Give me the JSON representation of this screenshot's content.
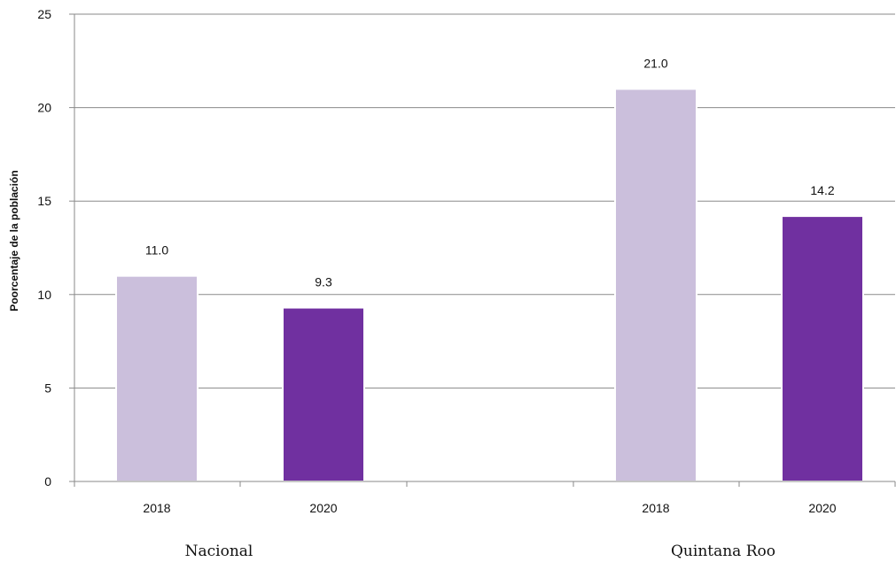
{
  "chart_data": {
    "type": "bar",
    "ylabel": "Poorcentaje de la población",
    "ylim": [
      0,
      25
    ],
    "yticks": [
      0,
      5,
      10,
      15,
      20,
      25
    ],
    "grid": true,
    "groups": [
      {
        "name": "Nacional",
        "bars": [
          {
            "year": "2018",
            "value": 11.0,
            "label": "11.0"
          },
          {
            "year": "2020",
            "value": 9.3,
            "label": "9.3"
          }
        ]
      },
      {
        "name": "Quintana Roo",
        "bars": [
          {
            "year": "2018",
            "value": 21.0,
            "label": "21.0"
          },
          {
            "year": "2020",
            "value": 14.2,
            "label": "14.2"
          }
        ]
      }
    ],
    "colors": {
      "2018": "#cbbfdc",
      "2020": "#7030a0"
    }
  }
}
